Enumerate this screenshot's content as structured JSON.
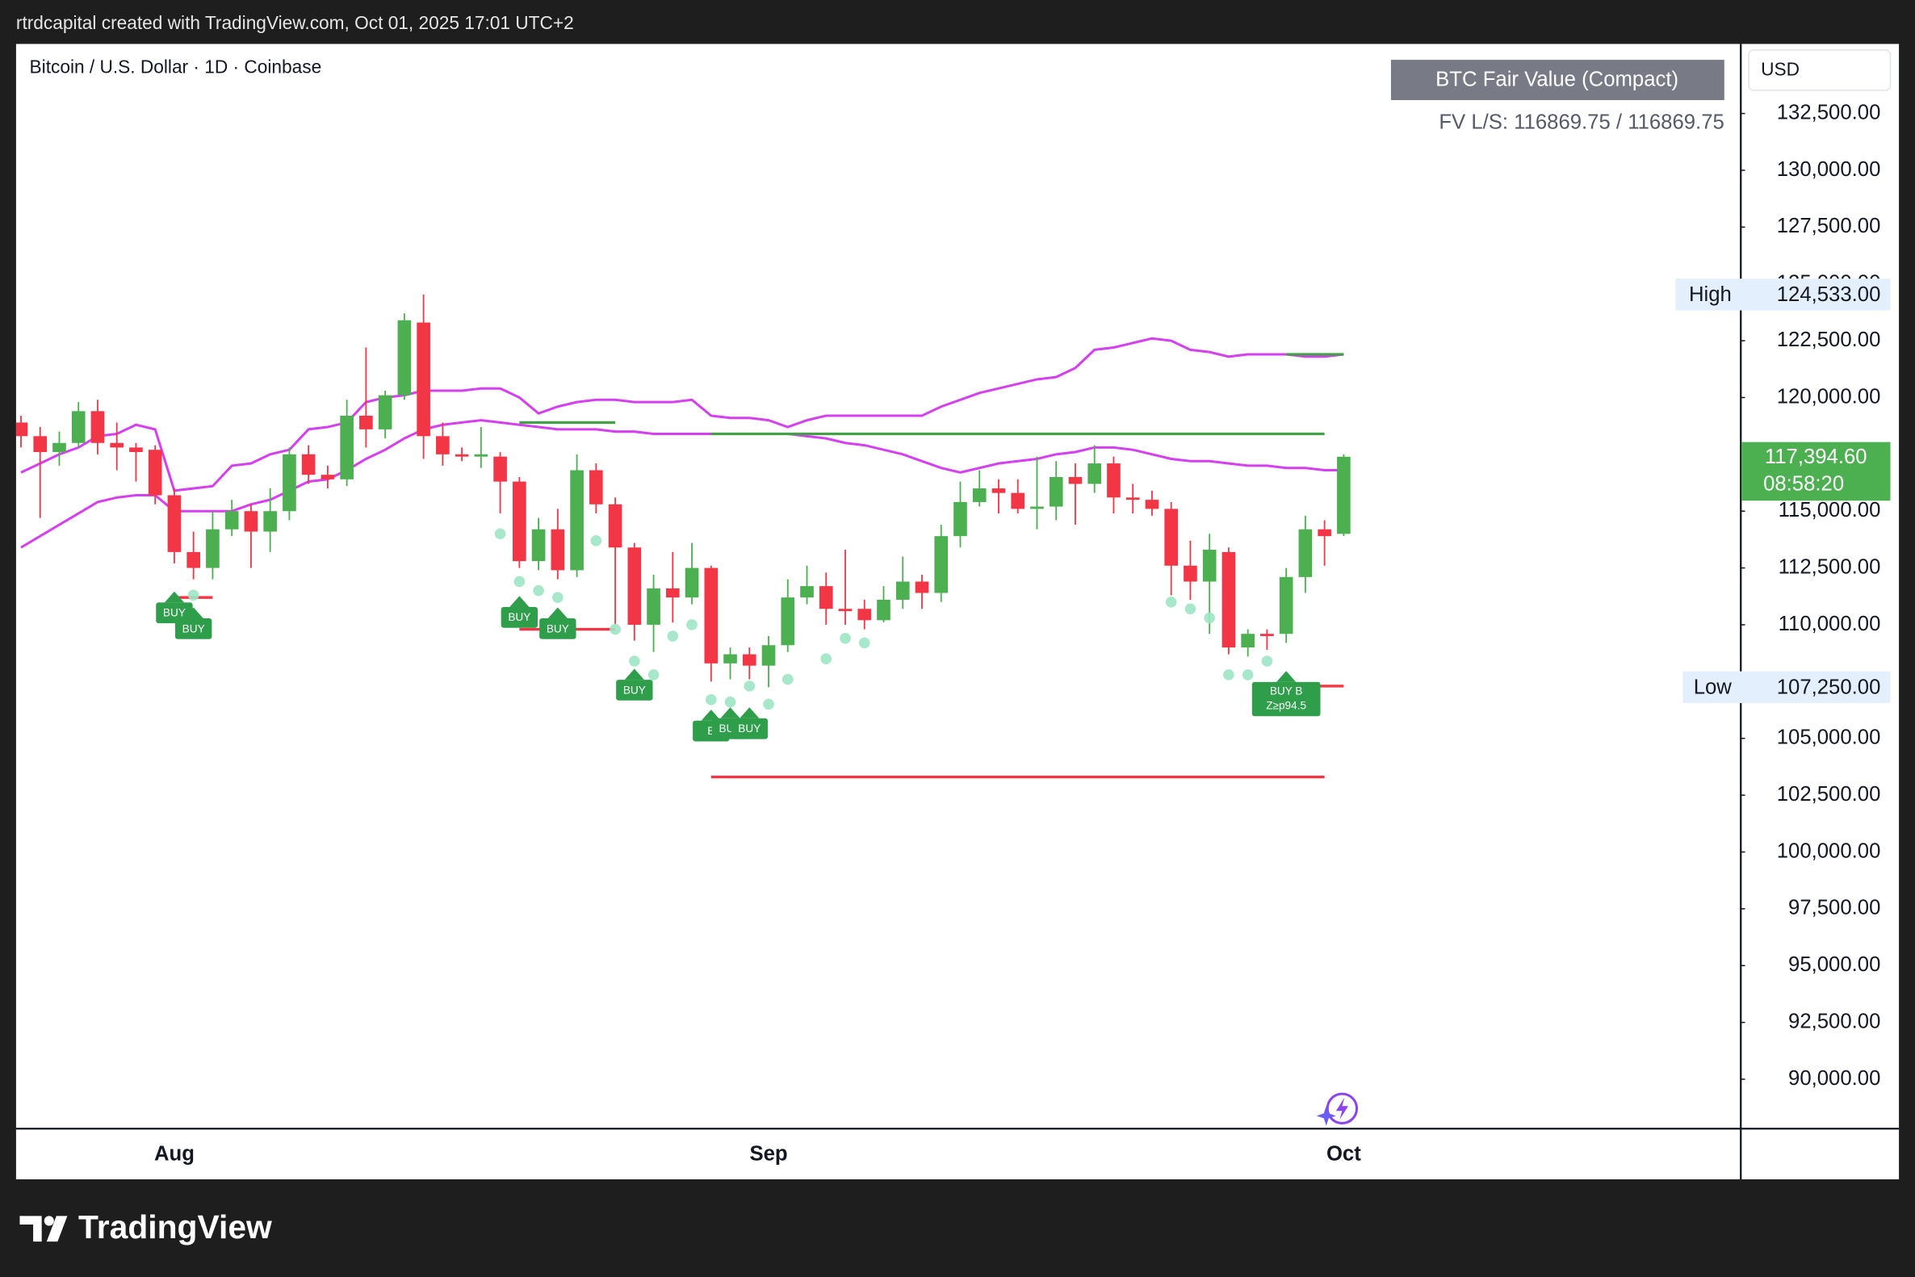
{
  "attribution": "rtrdcapital created with TradingView.com, Oct 01, 2025 17:01 UTC+2",
  "brand": "TradingView",
  "chart_data": {
    "type": "candlestick",
    "title": "Bitcoin / U.S. Dollar · 1D · Coinbase",
    "currency": "USD",
    "indicator": {
      "title": "BTC Fair Value (Compact)",
      "subtitle": "FV L/S: 116869.75 / 116869.75"
    },
    "categories": [
      null,
      null,
      null,
      null,
      null,
      null,
      null,
      null,
      "Aug",
      null,
      null,
      null,
      null,
      null,
      null,
      null,
      null,
      null,
      null,
      null,
      null,
      null,
      null,
      null,
      null,
      null,
      null,
      null,
      null,
      null,
      null,
      null,
      null,
      null,
      null,
      null,
      null,
      null,
      null,
      "Sep",
      null,
      null,
      null,
      null,
      null,
      null,
      null,
      null,
      null,
      null,
      null,
      null,
      null,
      null,
      null,
      null,
      null,
      null,
      null,
      null,
      null,
      null,
      null,
      null,
      null,
      null,
      null,
      null,
      null,
      "Oct"
    ],
    "open": [
      118900,
      118300,
      117600,
      118000,
      119400,
      118000,
      117800,
      117700,
      115700,
      113200,
      112500,
      114200,
      115000,
      114100,
      115000,
      117500,
      116600,
      116400,
      119200,
      118600,
      120100,
      123300,
      118300,
      117500,
      117400,
      117400,
      116300,
      112800,
      114200,
      112400,
      116800,
      115300,
      113400,
      110000,
      111600,
      111200,
      112500,
      108300,
      108700,
      108200,
      109100,
      111200,
      111700,
      110700,
      110700,
      110200,
      111100,
      111900,
      111400,
      113900,
      115400,
      116000,
      115800,
      115100,
      115200,
      116500,
      116200,
      117100,
      115600,
      115500,
      115100,
      112600,
      111900,
      113200,
      109000,
      109600,
      109600,
      112100,
      114200,
      114000
    ],
    "high": [
      119200,
      118700,
      118500,
      119800,
      119900,
      118900,
      118000,
      117900,
      116000,
      114100,
      115000,
      115500,
      115300,
      116000,
      117800,
      117900,
      117000,
      119900,
      122200,
      120300,
      123700,
      124533,
      118900,
      117800,
      118700,
      117600,
      116500,
      114700,
      115100,
      117500,
      117100,
      115600,
      113600,
      112200,
      113200,
      113600,
      112600,
      109000,
      109000,
      109500,
      112000,
      112600,
      112300,
      113300,
      111100,
      111700,
      113000,
      112200,
      114400,
      116300,
      116800,
      116400,
      116400,
      117400,
      117200,
      117100,
      117900,
      117400,
      116200,
      115900,
      115400,
      113700,
      114000,
      113400,
      109800,
      109800,
      112500,
      114800,
      114600,
      117500
    ],
    "low": [
      117800,
      114700,
      117000,
      117800,
      117500,
      116800,
      116300,
      115300,
      112700,
      112000,
      112000,
      113900,
      112500,
      113200,
      114600,
      116200,
      116000,
      116100,
      117800,
      118200,
      119900,
      117300,
      117000,
      117200,
      116900,
      114900,
      112500,
      112400,
      112000,
      112100,
      114900,
      110000,
      109300,
      108800,
      110100,
      110900,
      107500,
      107600,
      107600,
      107250,
      108800,
      110900,
      110000,
      110000,
      109800,
      110100,
      110700,
      110700,
      111000,
      113400,
      115200,
      114900,
      114900,
      114200,
      114600,
      114400,
      115800,
      114900,
      114900,
      114800,
      111300,
      111100,
      109600,
      108700,
      108600,
      108900,
      109200,
      111400,
      112600,
      113900
    ],
    "close": [
      118300,
      117600,
      118000,
      119400,
      118000,
      117800,
      117600,
      115700,
      113200,
      112500,
      114200,
      115000,
      114100,
      115000,
      117500,
      116600,
      116400,
      119200,
      118600,
      120100,
      123400,
      118300,
      117500,
      117400,
      117500,
      116300,
      112800,
      114200,
      112400,
      116800,
      115300,
      113400,
      110000,
      111600,
      111200,
      112500,
      108300,
      108700,
      108200,
      109100,
      111200,
      111700,
      110700,
      110600,
      110200,
      111100,
      111900,
      111400,
      113900,
      115400,
      116000,
      115800,
      115100,
      115200,
      116500,
      116200,
      117100,
      115600,
      115500,
      115100,
      112600,
      111900,
      113300,
      109000,
      109600,
      109500,
      112100,
      114200,
      113900,
      117394.6
    ],
    "up_color": "#4caf50",
    "down_color": "#f23645",
    "ylim": [
      87850,
      135560
    ],
    "yticks": [
      {
        "value": 132500,
        "label": "132,500.00"
      },
      {
        "value": 130000,
        "label": "130,000.00"
      },
      {
        "value": 127500,
        "label": "127,500.00"
      },
      {
        "value": 125000,
        "label": "125,000.00"
      },
      {
        "value": 122500,
        "label": "122,500.00"
      },
      {
        "value": 120000,
        "label": "120,000.00"
      },
      {
        "value": 117500,
        "label": "117,500.00"
      },
      {
        "value": 115000,
        "label": "115,000.00"
      },
      {
        "value": 112500,
        "label": "112,500.00"
      },
      {
        "value": 110000,
        "label": "110,000.00"
      },
      {
        "value": 107500,
        "label": "107,500.00"
      },
      {
        "value": 105000,
        "label": "105,000.00"
      },
      {
        "value": 102500,
        "label": "102,500.00"
      },
      {
        "value": 100000,
        "label": "100,000.00"
      },
      {
        "value": 97500,
        "label": "97,500.00"
      },
      {
        "value": 95000,
        "label": "95,000.00"
      },
      {
        "value": 92500,
        "label": "92,500.00"
      },
      {
        "value": 90000,
        "label": "90,000.00"
      }
    ],
    "bands": [
      {
        "color": "#d63ff0",
        "values": [
          116700,
          117100,
          117500,
          117800,
          118300,
          118400,
          118800,
          118600,
          115900,
          116000,
          116100,
          117000,
          117100,
          117500,
          117700,
          118600,
          118700,
          118900,
          119800,
          120000,
          120100,
          120300,
          120300,
          120300,
          120400,
          120400,
          120000,
          119300,
          119600,
          119800,
          119900,
          119900,
          119800,
          119800,
          119800,
          119900,
          119200,
          119100,
          119100,
          119000,
          118700,
          119000,
          119200,
          119200,
          119200,
          119200,
          119200,
          119200,
          119600,
          119900,
          120200,
          120400,
          120600,
          120800,
          120900,
          121300,
          122100,
          122200,
          122400,
          122600,
          122500,
          122100,
          122000,
          121800,
          121900,
          121900,
          121900,
          121800,
          121800,
          121900
        ]
      },
      {
        "color": "#d63ff0",
        "values": [
          113400,
          113900,
          114400,
          114900,
          115400,
          115600,
          115700,
          115700,
          115000,
          115000,
          115000,
          115000,
          115300,
          115500,
          115900,
          116300,
          116400,
          116800,
          117300,
          117700,
          118200,
          118600,
          118800,
          118900,
          119000,
          118900,
          118800,
          118700,
          118600,
          118600,
          118600,
          118500,
          118500,
          118400,
          118400,
          118400,
          118400,
          118400,
          118400,
          118400,
          118400,
          118300,
          118200,
          118000,
          117900,
          117700,
          117500,
          117200,
          116900,
          116700,
          116900,
          117100,
          117200,
          117300,
          117500,
          117600,
          117800,
          117800,
          117700,
          117500,
          117300,
          117200,
          117200,
          117100,
          117000,
          117000,
          116900,
          116900,
          116800,
          116800
        ]
      }
    ],
    "levels": [
      {
        "color": "#43a047",
        "values": [
          null,
          null,
          null,
          null,
          null,
          null,
          null,
          null,
          null,
          null,
          null,
          null,
          null,
          null,
          null,
          null,
          null,
          null,
          null,
          null,
          null,
          null,
          null,
          null,
          null,
          null,
          118900,
          118900,
          118900,
          118900,
          118900,
          118900,
          null,
          null,
          null,
          null,
          118400,
          118400,
          118400,
          118400,
          118400,
          118400,
          118400,
          118400,
          118400,
          118400,
          118400,
          118400,
          118400,
          118400,
          118400,
          118400,
          118400,
          118400,
          118400,
          118400,
          118400,
          118400,
          118400,
          118400,
          118400,
          118400,
          118400,
          118400,
          118400,
          118400,
          118400,
          118400,
          118400,
          null
        ]
      },
      {
        "color": "#43a047",
        "values": [
          null,
          null,
          null,
          null,
          null,
          null,
          null,
          null,
          null,
          null,
          null,
          null,
          null,
          null,
          null,
          null,
          null,
          null,
          null,
          null,
          null,
          null,
          null,
          null,
          null,
          null,
          null,
          null,
          null,
          null,
          null,
          null,
          null,
          null,
          null,
          null,
          null,
          null,
          null,
          null,
          null,
          null,
          null,
          null,
          null,
          null,
          null,
          null,
          null,
          null,
          null,
          null,
          null,
          null,
          null,
          null,
          null,
          null,
          null,
          null,
          null,
          null,
          null,
          null,
          null,
          null,
          121900,
          121900,
          121900,
          121900
        ]
      },
      {
        "color": "#f23645",
        "values": [
          null,
          null,
          null,
          null,
          null,
          null,
          null,
          null,
          111200,
          111200,
          111200,
          null,
          null,
          null,
          null,
          null,
          null,
          null,
          null,
          null,
          null,
          null,
          null,
          null,
          null,
          null,
          109800,
          109800,
          109800,
          109800,
          109800,
          109800,
          null,
          null,
          null,
          null,
          103300,
          103300,
          103300,
          103300,
          103300,
          103300,
          103300,
          103300,
          103300,
          103300,
          103300,
          103300,
          103300,
          103300,
          103300,
          103300,
          103300,
          103300,
          103300,
          103300,
          103300,
          103300,
          103300,
          103300,
          103300,
          103300,
          103300,
          103300,
          103300,
          103300,
          103300,
          103300,
          103300,
          null
        ]
      },
      {
        "color": "#f23645",
        "values": [
          null,
          null,
          null,
          null,
          null,
          null,
          null,
          null,
          null,
          null,
          null,
          null,
          null,
          null,
          null,
          null,
          null,
          null,
          null,
          null,
          null,
          null,
          null,
          null,
          null,
          null,
          null,
          null,
          null,
          null,
          null,
          null,
          null,
          null,
          null,
          null,
          null,
          null,
          null,
          null,
          null,
          null,
          null,
          null,
          null,
          null,
          null,
          null,
          null,
          null,
          null,
          null,
          null,
          null,
          null,
          null,
          null,
          null,
          null,
          null,
          null,
          null,
          null,
          null,
          null,
          null,
          107300,
          107300,
          107300,
          107300
        ]
      }
    ],
    "dots": {
      "color": "#9fe6c4",
      "values": [
        null,
        null,
        null,
        null,
        null,
        null,
        null,
        null,
        null,
        111300,
        null,
        null,
        null,
        null,
        null,
        null,
        null,
        null,
        null,
        null,
        null,
        null,
        null,
        null,
        null,
        114000,
        111900,
        111500,
        111200,
        null,
        113700,
        109800,
        108400,
        107800,
        109500,
        110000,
        106700,
        106600,
        107300,
        106500,
        107600,
        null,
        108500,
        109400,
        109200,
        null,
        null,
        null,
        null,
        null,
        null,
        null,
        null,
        null,
        null,
        null,
        null,
        null,
        null,
        null,
        111000,
        110700,
        110300,
        107800,
        107800,
        108400,
        null,
        null,
        null,
        null
      ]
    },
    "signal_color": "#2e9e4b",
    "signals": [
      null,
      null,
      null,
      null,
      null,
      null,
      null,
      null,
      "BUY",
      "BUY",
      null,
      null,
      null,
      null,
      null,
      null,
      null,
      null,
      null,
      null,
      null,
      null,
      null,
      null,
      null,
      null,
      "BUY",
      null,
      "BUY",
      null,
      null,
      null,
      "BUY",
      null,
      null,
      null,
      "B",
      "BUY",
      "BUY",
      null,
      null,
      null,
      null,
      null,
      null,
      null,
      null,
      null,
      null,
      null,
      null,
      null,
      null,
      null,
      null,
      null,
      null,
      null,
      null,
      null,
      null,
      null,
      null,
      null,
      null,
      null,
      "BUY B",
      null,
      null,
      null
    ],
    "signal_notes": [
      null,
      null,
      null,
      null,
      null,
      null,
      null,
      null,
      null,
      null,
      null,
      null,
      null,
      null,
      null,
      null,
      null,
      null,
      null,
      null,
      null,
      null,
      null,
      null,
      null,
      null,
      null,
      null,
      null,
      null,
      null,
      null,
      null,
      null,
      null,
      null,
      null,
      null,
      null,
      null,
      null,
      null,
      null,
      null,
      null,
      null,
      null,
      null,
      null,
      null,
      null,
      null,
      null,
      null,
      null,
      null,
      null,
      null,
      null,
      null,
      null,
      null,
      null,
      null,
      null,
      null,
      "Z≥p94.5",
      null,
      null,
      null
    ],
    "high_marker": {
      "label": "High",
      "value": 124533,
      "value_label": "124,533.00"
    },
    "low_marker": {
      "label": "Low",
      "value": 107250,
      "value_label": "107,250.00"
    },
    "last_price": {
      "value": 117394.6,
      "label": "117,394.60",
      "countdown": "08:58:20"
    }
  }
}
